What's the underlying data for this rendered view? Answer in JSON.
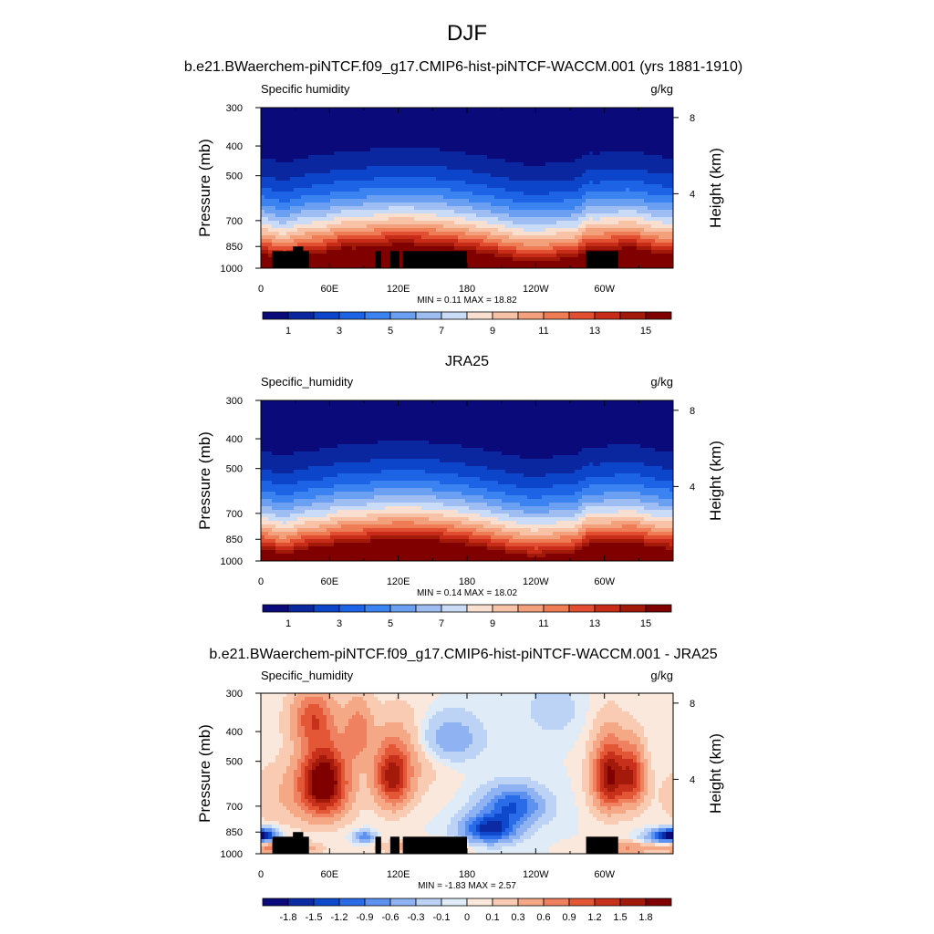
{
  "figure": {
    "title": "DJF",
    "panel_titles": [
      "b.e21.BWaerchem-piNTCF.f09_g17.CMIP6-hist-piNTCF-WACCM.001 (yrs 1881-1910)",
      "JRA25",
      "b.e21.BWaerchem-piNTCF.f09_g17.CMIP6-hist-piNTCF-WACCM.001 - JRA25"
    ]
  },
  "colors": {
    "abs_levels": [
      "#0a0a7a",
      "#0b27a0",
      "#0c45c9",
      "#1c63e6",
      "#3b83f0",
      "#6a9ff2",
      "#9dbdf3",
      "#c9dbf6",
      "#f8dfd0",
      "#f7c2a6",
      "#f3a07c",
      "#ee7c55",
      "#e24e31",
      "#c72c18",
      "#a31909",
      "#800000"
    ],
    "diff_levels": [
      "#0a0a7a",
      "#0c2aa3",
      "#0d48cd",
      "#2a6ce8",
      "#5d91ef",
      "#8fb2f2",
      "#bcd3f5",
      "#e0ebf8",
      "#fbe8dc",
      "#f8cbb2",
      "#f4a886",
      "#ef8160",
      "#e35636",
      "#c7301a",
      "#a31a0a",
      "#800000"
    ],
    "terrain": "#000000"
  },
  "chart_data": [
    {
      "type": "heatmap",
      "left_label": "Specific humidity",
      "right_label": "g/kg",
      "ylabel": "Pressure (mb)",
      "ylabel_right": "Height (km)",
      "x_ticks": [
        "0",
        "60E",
        "120E",
        "180",
        "120W",
        "60W"
      ],
      "x_tick_lon": [
        0,
        60,
        120,
        180,
        240,
        300
      ],
      "xlim": [
        0,
        360
      ],
      "y_ticks": [
        "300",
        "400",
        "500",
        "700",
        "850",
        "1000"
      ],
      "y_tick_p": [
        300,
        400,
        500,
        700,
        850,
        1000
      ],
      "ylim": [
        300,
        1000
      ],
      "y_scale": "log",
      "height_ticks": [
        "8",
        "4"
      ],
      "height_tick_km": [
        8,
        4
      ],
      "stats": "MIN =   0.11  MAX =  18.82",
      "min": 0.11,
      "max": 18.82,
      "colorbar_labels": [
        "1",
        "3",
        "5",
        "7",
        "9",
        "11",
        "13",
        "15"
      ],
      "colorbar_levels": [
        0,
        1,
        2,
        3,
        4,
        5,
        6,
        7,
        8,
        9,
        10,
        11,
        12,
        13,
        14,
        15
      ],
      "field": "abs",
      "terrain": true
    },
    {
      "type": "heatmap",
      "left_label": "Specific_humidity",
      "right_label": "g/kg",
      "ylabel": "Pressure (mb)",
      "ylabel_right": "Height (km)",
      "x_ticks": [
        "0",
        "60E",
        "120E",
        "180",
        "120W",
        "60W"
      ],
      "x_tick_lon": [
        0,
        60,
        120,
        180,
        240,
        300
      ],
      "xlim": [
        0,
        360
      ],
      "y_ticks": [
        "300",
        "400",
        "500",
        "700",
        "850",
        "1000"
      ],
      "y_tick_p": [
        300,
        400,
        500,
        700,
        850,
        1000
      ],
      "ylim": [
        300,
        1000
      ],
      "y_scale": "log",
      "height_ticks": [
        "8",
        "4"
      ],
      "height_tick_km": [
        8,
        4
      ],
      "stats": "MIN =   0.14  MAX =  18.02",
      "min": 0.14,
      "max": 18.02,
      "colorbar_labels": [
        "1",
        "3",
        "5",
        "7",
        "9",
        "11",
        "13",
        "15"
      ],
      "colorbar_levels": [
        0,
        1,
        2,
        3,
        4,
        5,
        6,
        7,
        8,
        9,
        10,
        11,
        12,
        13,
        14,
        15
      ],
      "field": "abs",
      "terrain": false
    },
    {
      "type": "heatmap",
      "left_label": "Specific_humidity",
      "right_label": "g/kg",
      "ylabel": "Pressure (mb)",
      "ylabel_right": "Height (km)",
      "x_ticks": [
        "0",
        "60E",
        "120E",
        "180",
        "120W",
        "60W"
      ],
      "x_tick_lon": [
        0,
        60,
        120,
        180,
        240,
        300
      ],
      "xlim": [
        0,
        360
      ],
      "y_ticks": [
        "300",
        "400",
        "500",
        "700",
        "850",
        "1000"
      ],
      "y_tick_p": [
        300,
        400,
        500,
        700,
        850,
        1000
      ],
      "ylim": [
        300,
        1000
      ],
      "y_scale": "log",
      "height_ticks": [
        "8",
        "4"
      ],
      "height_tick_km": [
        8,
        4
      ],
      "stats": "MIN =  -1.83  MAX =   2.57",
      "min": -1.83,
      "max": 2.57,
      "colorbar_labels": [
        "-1.8",
        "-1.5",
        "-1.2",
        "-0.9",
        "-0.6",
        "-0.3",
        "-0.1",
        "0",
        "0.1",
        "0.3",
        "0.6",
        "0.9",
        "1.2",
        "1.5",
        "1.8"
      ],
      "colorbar_levels": [
        -2.1,
        -1.8,
        -1.5,
        -1.2,
        -0.9,
        -0.6,
        -0.3,
        -0.1,
        0,
        0.1,
        0.3,
        0.6,
        0.9,
        1.2,
        1.5,
        1.8
      ],
      "field": "diff",
      "terrain": true
    }
  ]
}
